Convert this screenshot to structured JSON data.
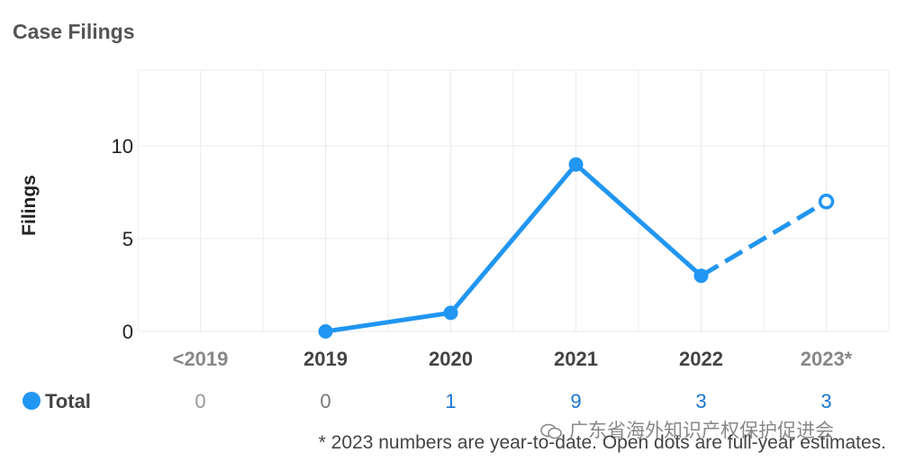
{
  "chart_data": {
    "type": "line",
    "title": "Case Filings",
    "ylabel": "Filings",
    "ylim": [
      0,
      10
    ],
    "yticks": [
      0,
      5,
      10
    ],
    "grid": true,
    "categories": [
      "<2019",
      "2019",
      "2020",
      "2021",
      "2022",
      "2023*"
    ],
    "category_bold": [
      false,
      true,
      true,
      true,
      true,
      false
    ],
    "series": [
      {
        "name": "Total",
        "color": "#2196F3",
        "points": [
          {
            "x": "2019",
            "y": 0,
            "style": "filled"
          },
          {
            "x": "2020",
            "y": 1,
            "style": "filled"
          },
          {
            "x": "2021",
            "y": 9,
            "style": "filled"
          },
          {
            "x": "2022",
            "y": 3,
            "style": "filled"
          },
          {
            "x": "2023*",
            "y": 7,
            "style": "open"
          }
        ],
        "dashed_from": "2022"
      }
    ],
    "table": {
      "row_label": "Total",
      "values": [
        "0",
        "0",
        "1",
        "9",
        "3",
        "3"
      ],
      "value_colors": [
        "#999999",
        "#777777",
        "#1976D2",
        "#1976D2",
        "#1976D2",
        "#1976D2"
      ]
    },
    "footnote": "* 2023 numbers are year-to-date. Open dots are full-year estimates.",
    "watermark": "广东省海外知识产权保护促进会"
  }
}
